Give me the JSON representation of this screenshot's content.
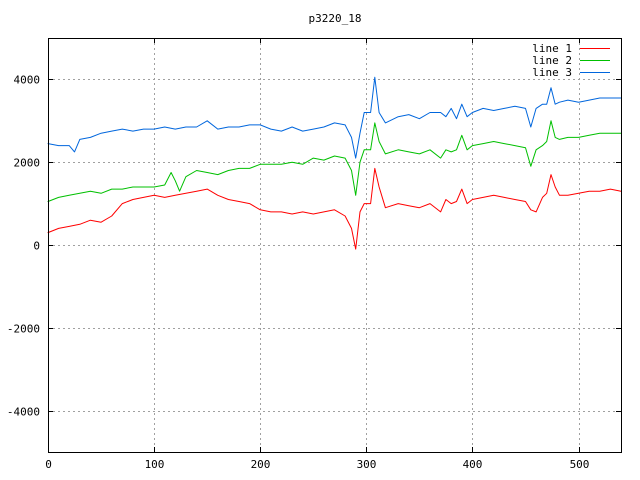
{
  "chart_data": {
    "type": "line",
    "title": "p3220_18",
    "xlabel": "",
    "ylabel": "",
    "xlim": [
      0,
      540
    ],
    "ylim": [
      -5000,
      5000
    ],
    "x_ticks": [
      0,
      100,
      200,
      300,
      400,
      500
    ],
    "y_ticks": [
      -4000,
      -2000,
      0,
      2000,
      4000
    ],
    "grid": true,
    "legend_position": "top-right",
    "series": [
      {
        "name": "line 1",
        "color": "#ff0000",
        "x": [
          0,
          10,
          20,
          30,
          40,
          50,
          60,
          70,
          80,
          90,
          100,
          110,
          120,
          130,
          140,
          150,
          160,
          170,
          180,
          190,
          200,
          210,
          220,
          230,
          240,
          250,
          260,
          270,
          280,
          286,
          290,
          294,
          298,
          304,
          308,
          312,
          318,
          330,
          340,
          350,
          360,
          370,
          375,
          380,
          385,
          390,
          395,
          400,
          410,
          420,
          430,
          440,
          450,
          455,
          460,
          466,
          470,
          474,
          478,
          482,
          490,
          500,
          510,
          520,
          530,
          540
        ],
        "y": [
          300,
          400,
          450,
          500,
          600,
          550,
          700,
          1000,
          1100,
          1150,
          1200,
          1150,
          1200,
          1250,
          1300,
          1350,
          1200,
          1100,
          1050,
          1000,
          850,
          800,
          800,
          750,
          800,
          750,
          800,
          850,
          700,
          400,
          -100,
          800,
          1000,
          1000,
          1850,
          1400,
          900,
          1000,
          950,
          900,
          1000,
          800,
          1100,
          1000,
          1050,
          1350,
          1000,
          1100,
          1150,
          1200,
          1150,
          1100,
          1050,
          850,
          800,
          1150,
          1250,
          1700,
          1400,
          1200,
          1200,
          1250,
          1300,
          1300,
          1350,
          1300
        ]
      },
      {
        "name": "line 2",
        "color": "#00c000",
        "x": [
          0,
          10,
          20,
          30,
          40,
          50,
          60,
          70,
          80,
          90,
          100,
          110,
          116,
          120,
          124,
          130,
          140,
          150,
          160,
          170,
          180,
          190,
          200,
          210,
          220,
          230,
          240,
          250,
          260,
          270,
          280,
          286,
          290,
          294,
          298,
          304,
          308,
          312,
          318,
          330,
          340,
          350,
          360,
          370,
          375,
          380,
          385,
          390,
          395,
          400,
          410,
          420,
          430,
          440,
          450,
          455,
          460,
          466,
          470,
          474,
          478,
          482,
          490,
          500,
          510,
          520,
          530,
          540
        ],
        "y": [
          1050,
          1150,
          1200,
          1250,
          1300,
          1250,
          1350,
          1350,
          1400,
          1400,
          1400,
          1450,
          1750,
          1550,
          1300,
          1650,
          1800,
          1750,
          1700,
          1800,
          1850,
          1850,
          1950,
          1950,
          1950,
          2000,
          1950,
          2100,
          2050,
          2150,
          2100,
          1800,
          1200,
          2000,
          2300,
          2300,
          2950,
          2500,
          2200,
          2300,
          2250,
          2200,
          2300,
          2100,
          2300,
          2250,
          2300,
          2650,
          2300,
          2400,
          2450,
          2500,
          2450,
          2400,
          2350,
          1900,
          2300,
          2400,
          2500,
          3000,
          2600,
          2550,
          2600,
          2600,
          2650,
          2700,
          2700,
          2700
        ]
      },
      {
        "name": "line 3",
        "color": "#0066dd",
        "x": [
          0,
          10,
          20,
          25,
          30,
          40,
          50,
          60,
          70,
          80,
          90,
          100,
          110,
          120,
          130,
          140,
          150,
          160,
          170,
          180,
          190,
          200,
          210,
          220,
          230,
          240,
          250,
          260,
          270,
          280,
          286,
          290,
          294,
          298,
          304,
          308,
          312,
          318,
          330,
          340,
          350,
          360,
          370,
          375,
          380,
          385,
          390,
          395,
          400,
          410,
          420,
          430,
          440,
          450,
          455,
          460,
          466,
          470,
          474,
          478,
          482,
          490,
          500,
          510,
          520,
          530,
          540
        ],
        "y": [
          2450,
          2400,
          2400,
          2250,
          2550,
          2600,
          2700,
          2750,
          2800,
          2750,
          2800,
          2800,
          2850,
          2800,
          2850,
          2850,
          3000,
          2800,
          2850,
          2850,
          2900,
          2900,
          2800,
          2750,
          2850,
          2750,
          2800,
          2850,
          2950,
          2900,
          2600,
          2100,
          2700,
          3200,
          3200,
          4050,
          3200,
          2950,
          3100,
          3150,
          3050,
          3200,
          3200,
          3100,
          3300,
          3050,
          3400,
          3100,
          3200,
          3300,
          3250,
          3300,
          3350,
          3300,
          2850,
          3300,
          3400,
          3400,
          3800,
          3400,
          3450,
          3500,
          3450,
          3500,
          3550,
          3550,
          3550
        ]
      }
    ]
  }
}
